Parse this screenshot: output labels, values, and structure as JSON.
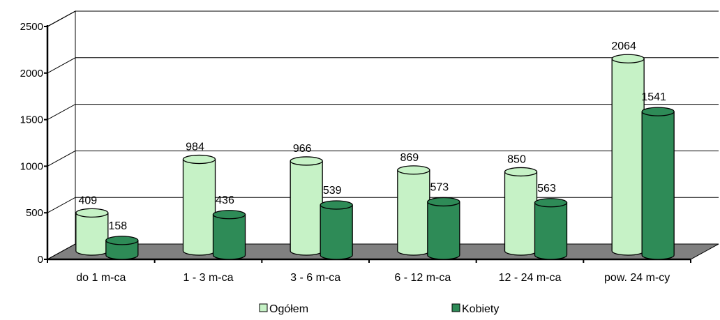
{
  "chart_data": {
    "type": "bar",
    "categories": [
      "do 1 m-ca",
      "1 - 3 m-ca",
      "3 - 6 m-ca",
      "6 - 12 m-ca",
      "12 - 24 m-ca",
      "pow. 24 m-cy"
    ],
    "series": [
      {
        "name": "Ogółem",
        "values": [
          409,
          984,
          966,
          869,
          850,
          2064
        ],
        "color": "#c6f2c6"
      },
      {
        "name": "Kobiety",
        "values": [
          158,
          436,
          539,
          573,
          563,
          1541
        ],
        "color": "#2e8b57"
      }
    ],
    "y_ticks": [
      0,
      500,
      1000,
      1500,
      2000,
      2500
    ],
    "ylim": [
      0,
      2500
    ],
    "grid": true,
    "style": "3d-cylinder",
    "legend_position": "bottom"
  }
}
